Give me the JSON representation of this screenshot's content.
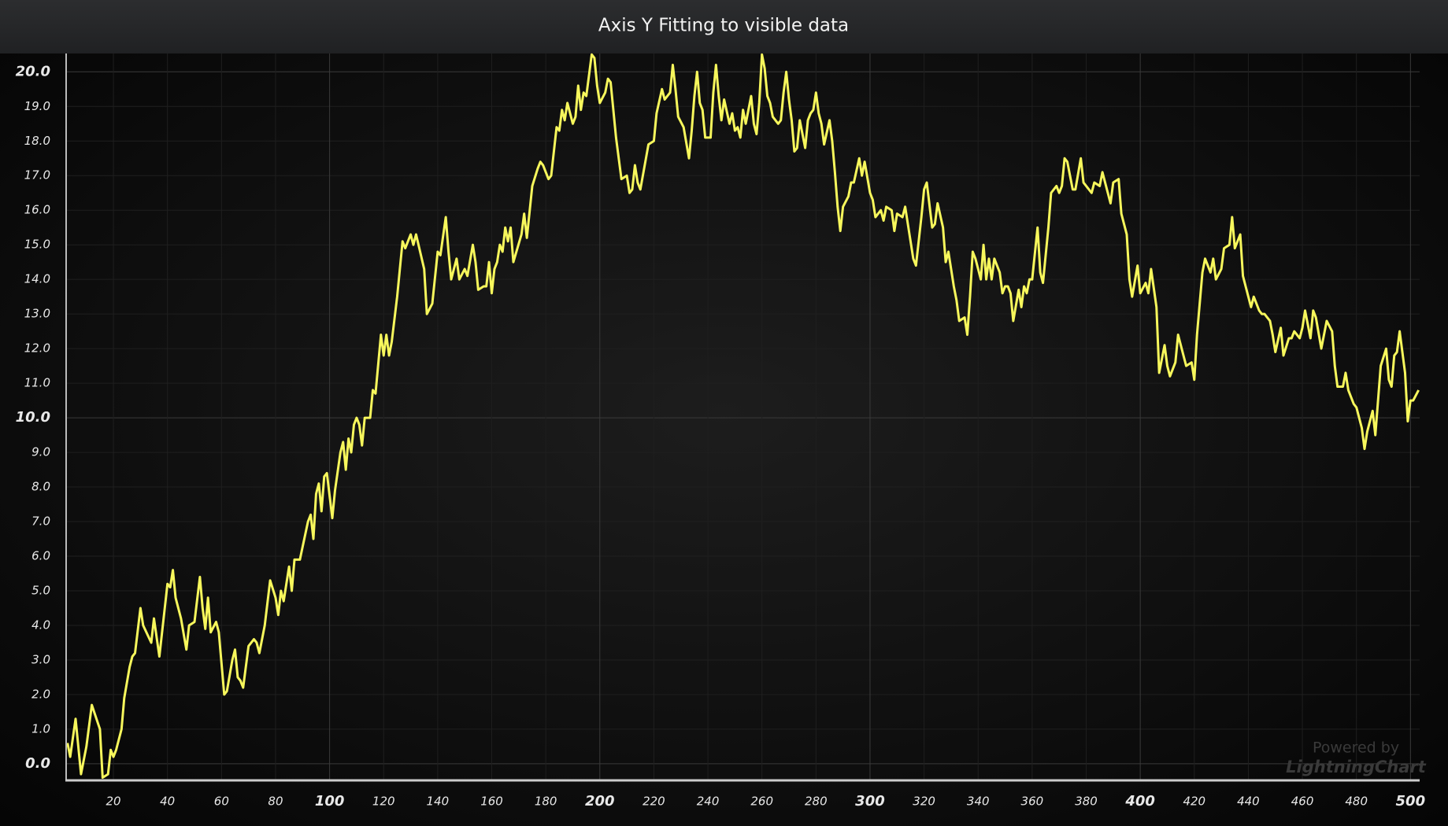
{
  "chart_data": {
    "type": "line",
    "title": "Axis Y Fitting to visible data",
    "watermark": {
      "line1": "Powered by",
      "line2": "LightningChart"
    },
    "grid": true,
    "xlim": [
      2.5,
      503.4
    ],
    "ylim": [
      -0.48,
      20.53
    ],
    "xticks": [
      20,
      40,
      60,
      80,
      100,
      120,
      140,
      160,
      180,
      200,
      220,
      240,
      260,
      280,
      300,
      320,
      340,
      360,
      380,
      400,
      420,
      440,
      460,
      480,
      500
    ],
    "yticks": [
      {
        "value": 0,
        "label": "0.0"
      },
      {
        "value": 1,
        "label": "1.0"
      },
      {
        "value": 2,
        "label": "2.0"
      },
      {
        "value": 3,
        "label": "3.0"
      },
      {
        "value": 4,
        "label": "4.0"
      },
      {
        "value": 5,
        "label": "5.0"
      },
      {
        "value": 6,
        "label": "6.0"
      },
      {
        "value": 7,
        "label": "7.0"
      },
      {
        "value": 8,
        "label": "8.0"
      },
      {
        "value": 9,
        "label": "9.0"
      },
      {
        "value": 10,
        "label": "10.0"
      },
      {
        "value": 11,
        "label": "11.0"
      },
      {
        "value": 12,
        "label": "12.0"
      },
      {
        "value": 13,
        "label": "13.0"
      },
      {
        "value": 14,
        "label": "14.0"
      },
      {
        "value": 15,
        "label": "15.0"
      },
      {
        "value": 16,
        "label": "16.0"
      },
      {
        "value": 17,
        "label": "17.0"
      },
      {
        "value": 18,
        "label": "18.0"
      },
      {
        "value": 19,
        "label": "19.0"
      },
      {
        "value": 20,
        "label": "20.0"
      }
    ],
    "x": [
      3,
      4,
      6,
      8,
      10,
      12,
      15,
      16,
      18,
      19,
      20,
      21,
      23,
      24,
      26,
      27,
      28,
      30,
      31,
      34,
      35,
      37,
      40,
      41,
      42,
      43,
      45,
      47,
      48,
      50,
      52,
      53,
      54,
      55,
      56,
      58,
      59,
      61,
      62,
      64,
      65,
      66,
      67,
      68,
      70,
      72,
      73,
      74,
      76,
      78,
      80,
      81,
      82,
      83,
      85,
      86,
      87,
      89,
      92,
      93,
      94,
      95,
      96,
      97,
      98,
      99,
      101,
      102,
      104,
      105,
      106,
      107,
      108,
      109,
      110,
      111,
      112,
      113,
      115,
      116,
      117,
      119,
      120,
      121,
      122,
      123,
      125,
      127,
      128,
      130,
      131,
      132,
      135,
      136,
      138,
      140,
      141,
      143,
      144,
      145,
      147,
      148,
      150,
      151,
      153,
      154,
      155,
      157,
      158,
      159,
      160,
      161,
      162,
      163,
      164,
      165,
      166,
      167,
      168,
      171,
      172,
      173,
      175,
      177,
      178,
      179,
      181,
      182,
      184,
      185,
      186,
      187,
      188,
      190,
      191,
      192,
      193,
      194,
      195,
      197,
      198,
      199,
      200,
      202,
      203,
      204,
      206,
      207,
      208,
      210,
      211,
      212,
      213,
      214,
      215,
      218,
      220,
      221,
      223,
      224,
      226,
      227,
      228,
      229,
      231,
      233,
      234,
      235,
      236,
      237,
      238,
      239,
      241,
      242,
      243,
      244,
      245,
      246,
      248,
      249,
      250,
      251,
      252,
      253,
      254,
      256,
      257,
      258,
      259,
      260,
      261,
      262,
      263,
      264,
      266,
      267,
      268,
      269,
      270,
      271,
      272,
      273,
      274,
      276,
      277,
      278,
      279,
      280,
      281,
      282,
      283,
      285,
      286,
      287,
      288,
      289,
      290,
      292,
      293,
      294,
      296,
      297,
      298,
      300,
      301,
      302,
      304,
      305,
      306,
      308,
      309,
      310,
      312,
      313,
      315,
      316,
      317,
      319,
      320,
      321,
      323,
      324,
      325,
      327,
      328,
      329,
      331,
      332,
      333,
      335,
      336,
      337,
      338,
      339,
      341,
      342,
      343,
      344,
      345,
      346,
      348,
      349,
      350,
      351,
      352,
      353,
      355,
      356,
      357,
      358,
      359,
      360,
      362,
      363,
      364,
      365,
      366,
      367,
      369,
      370,
      371,
      372,
      373,
      375,
      376,
      378,
      379,
      380,
      382,
      383,
      385,
      386,
      388,
      389,
      390,
      392,
      393,
      395,
      396,
      397,
      399,
      400,
      402,
      403,
      404,
      406,
      407,
      409,
      410,
      411,
      413,
      414,
      416,
      417,
      419,
      420,
      421,
      423,
      424,
      426,
      427,
      428,
      430,
      431,
      433,
      434,
      435,
      437,
      438,
      439,
      441,
      442,
      444,
      445,
      446,
      448,
      449,
      450,
      452,
      453,
      455,
      456,
      457,
      459,
      460,
      461,
      463,
      464,
      465,
      467,
      468,
      469,
      471,
      472,
      473,
      475,
      476,
      477,
      479,
      480,
      482,
      483,
      484,
      486,
      487,
      488,
      489,
      491,
      492,
      493,
      494,
      495,
      496,
      498,
      499,
      500,
      501,
      503
    ],
    "series": [
      {
        "color": "#f7f75c",
        "values": [
          0.6,
          0.2,
          1.3,
          -0.3,
          0.5,
          1.7,
          1.0,
          -0.4,
          -0.3,
          0.4,
          0.2,
          0.4,
          1.0,
          1.9,
          2.8,
          3.1,
          3.2,
          4.5,
          4.0,
          3.5,
          4.2,
          3.1,
          5.2,
          5.1,
          5.6,
          4.8,
          4.2,
          3.3,
          4.0,
          4.1,
          5.4,
          4.5,
          3.9,
          4.8,
          3.8,
          4.1,
          3.8,
          2.0,
          2.1,
          3.0,
          3.3,
          2.5,
          2.4,
          2.2,
          3.4,
          3.6,
          3.5,
          3.2,
          4.0,
          5.3,
          4.8,
          4.3,
          5.0,
          4.7,
          5.7,
          5.0,
          5.9,
          5.9,
          7.0,
          7.2,
          6.5,
          7.8,
          8.1,
          7.3,
          8.3,
          8.4,
          7.1,
          7.9,
          9.0,
          9.3,
          8.5,
          9.4,
          9.0,
          9.8,
          10.0,
          9.8,
          9.2,
          10.0,
          10.0,
          10.8,
          10.7,
          12.4,
          11.8,
          12.4,
          11.8,
          12.2,
          13.5,
          15.1,
          14.9,
          15.3,
          15.0,
          15.3,
          14.3,
          13.0,
          13.3,
          14.8,
          14.7,
          15.8,
          14.8,
          14.0,
          14.6,
          14.0,
          14.3,
          14.1,
          15.0,
          14.5,
          13.7,
          13.8,
          13.8,
          14.5,
          13.6,
          14.3,
          14.5,
          15.0,
          14.8,
          15.5,
          15.1,
          15.5,
          14.5,
          15.3,
          15.9,
          15.2,
          16.7,
          17.2,
          17.4,
          17.3,
          16.9,
          17.0,
          18.4,
          18.3,
          18.9,
          18.6,
          19.1,
          18.5,
          18.7,
          19.6,
          18.9,
          19.4,
          19.3,
          20.5,
          20.4,
          19.6,
          19.1,
          19.4,
          19.8,
          19.7,
          18.1,
          17.5,
          16.9,
          17.0,
          16.5,
          16.6,
          17.3,
          16.8,
          16.6,
          17.9,
          18.0,
          18.8,
          19.5,
          19.2,
          19.4,
          20.2,
          19.5,
          18.7,
          18.4,
          17.5,
          18.3,
          19.3,
          20.0,
          19.1,
          18.9,
          18.1,
          18.1,
          19.4,
          20.2,
          19.3,
          18.6,
          19.2,
          18.5,
          18.8,
          18.3,
          18.4,
          18.1,
          18.9,
          18.5,
          19.3,
          18.5,
          18.2,
          19.1,
          20.5,
          20.1,
          19.3,
          19.1,
          18.7,
          18.5,
          18.6,
          19.4,
          20.0,
          19.2,
          18.6,
          17.7,
          17.8,
          18.6,
          17.8,
          18.6,
          18.8,
          18.9,
          19.4,
          18.8,
          18.5,
          17.9,
          18.6,
          18.0,
          17.1,
          16.1,
          15.4,
          16.1,
          16.4,
          16.8,
          16.8,
          17.5,
          17.0,
          17.4,
          16.5,
          16.3,
          15.8,
          16.0,
          15.7,
          16.1,
          16.0,
          15.4,
          15.9,
          15.8,
          16.1,
          15.1,
          14.6,
          14.4,
          15.8,
          16.6,
          16.8,
          15.5,
          15.6,
          16.2,
          15.5,
          14.5,
          14.8,
          13.8,
          13.4,
          12.8,
          12.9,
          12.4,
          13.5,
          14.8,
          14.6,
          14.0,
          15.0,
          14.0,
          14.6,
          14.0,
          14.6,
          14.2,
          13.6,
          13.8,
          13.8,
          13.6,
          12.8,
          13.7,
          13.2,
          13.8,
          13.6,
          14.0,
          14.0,
          15.5,
          14.2,
          13.9,
          14.7,
          15.5,
          16.5,
          16.7,
          16.5,
          16.7,
          17.5,
          17.4,
          16.6,
          16.6,
          17.5,
          16.8,
          16.7,
          16.5,
          16.8,
          16.7,
          17.1,
          16.5,
          16.2,
          16.8,
          16.9,
          15.9,
          15.3,
          14.0,
          13.5,
          14.4,
          13.6,
          13.9,
          13.6,
          14.3,
          13.2,
          11.3,
          12.1,
          11.5,
          11.2,
          11.6,
          12.4,
          11.8,
          11.5,
          11.6,
          11.1,
          12.4,
          14.2,
          14.6,
          14.2,
          14.6,
          14.0,
          14.3,
          14.9,
          15.0,
          15.8,
          14.9,
          15.3,
          14.1,
          13.8,
          13.2,
          13.5,
          13.1,
          13.0,
          13.0,
          12.8,
          12.4,
          11.9,
          12.6,
          11.8,
          12.3,
          12.3,
          12.5,
          12.3,
          12.6,
          13.1,
          12.3,
          13.1,
          12.9,
          12.0,
          12.4,
          12.8,
          12.5,
          11.5,
          10.9,
          10.9,
          11.3,
          10.8,
          10.4,
          10.3,
          9.7,
          9.1,
          9.6,
          10.2,
          9.5,
          10.5,
          11.5,
          12.0,
          11.1,
          10.9,
          11.8,
          11.9,
          12.5,
          11.3,
          9.9,
          10.5,
          10.5,
          10.8
        ]
      }
    ]
  }
}
